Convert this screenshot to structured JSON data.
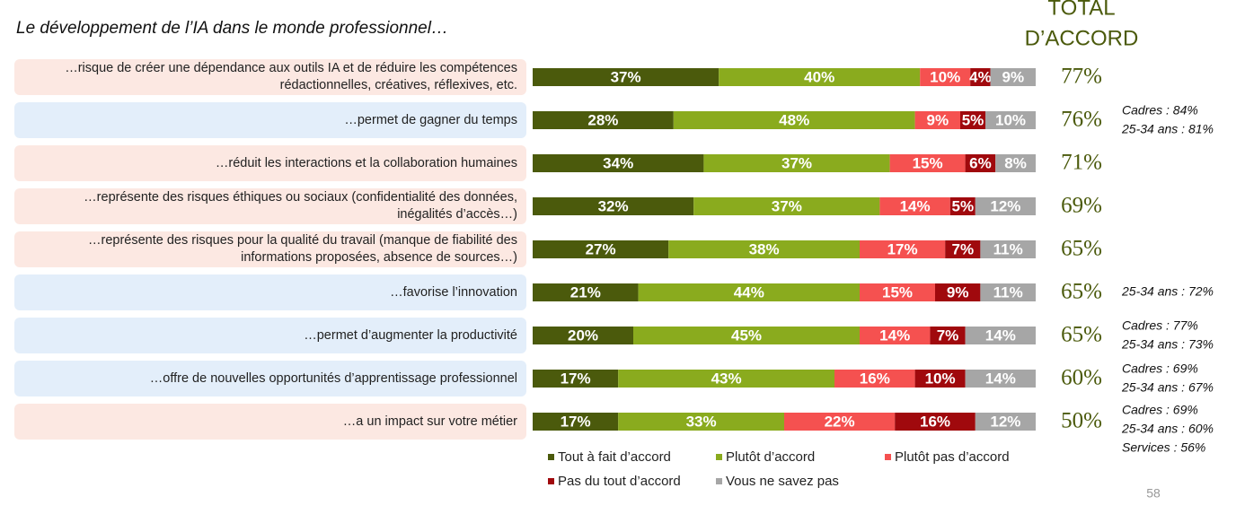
{
  "chart_data": {
    "type": "stacked_bar_horizontal",
    "title": "Le développement de l’IA dans le monde professionnel…",
    "total_title": [
      "TOTAL",
      "D’ACCORD"
    ],
    "page_number": "58",
    "categories": [
      "…risque de créer une dépendance aux outils IA et de réduire les compétences rédactionnelles, créatives, réflexives, etc.",
      "…permet de gagner du temps",
      "…réduit les interactions et la collaboration humaines",
      "…représente des risques éthiques ou sociaux (confidentialité des données, inégalités d’accès…)",
      "…représente des risques pour la qualité du travail (manque de fiabilité des informations proposées, absence de sources…)",
      "…favorise l’innovation",
      "…permet d’augmenter la productivité",
      "…offre de nouvelles opportunités d’apprentissage professionnel",
      "…a un impact sur votre métier"
    ],
    "category_colors": [
      "#fce8e2",
      "#e3eefa",
      "#fce8e2",
      "#fce8e2",
      "#fce8e2",
      "#e3eefa",
      "#e3eefa",
      "#e3eefa",
      "#fce8e2"
    ],
    "xlim": [
      0,
      100
    ],
    "series": [
      {
        "name": "Tout à fait d’accord",
        "color": "#4b5a0c",
        "values": [
          37,
          28,
          34,
          32,
          27,
          21,
          20,
          17,
          17
        ],
        "value_labels": [
          "37%",
          "28%",
          "34%",
          "32%",
          "27%",
          "21%",
          "20%",
          "17%",
          "17%"
        ]
      },
      {
        "name": "Plutôt d’accord",
        "color": "#8aab1e",
        "values": [
          40,
          48,
          37,
          37,
          38,
          44,
          45,
          43,
          33
        ],
        "value_labels": [
          "40%",
          "48%",
          "37%",
          "37%",
          "38%",
          "44%",
          "45%",
          "43%",
          "33%"
        ]
      },
      {
        "name": "Plutôt pas d’accord",
        "color": "#f55150",
        "values": [
          10,
          9,
          15,
          14,
          17,
          15,
          14,
          16,
          22
        ],
        "value_labels": [
          "10%",
          "9%",
          "15%",
          "14%",
          "17%",
          "15%",
          "14%",
          "16%",
          "22%"
        ]
      },
      {
        "name": "Pas du tout d’accord",
        "color": "#a0090d",
        "values": [
          4,
          5,
          6,
          5,
          7,
          9,
          7,
          10,
          16
        ],
        "value_labels": [
          "4%",
          "5%",
          "6%",
          "5%",
          "7%",
          "9%",
          "7%",
          "10%",
          "16%"
        ]
      },
      {
        "name": "Vous ne savez pas",
        "color": "#a6a6a6",
        "values": [
          9,
          10,
          8,
          12,
          11,
          11,
          14,
          14,
          12
        ],
        "value_labels": [
          "9%",
          "10%",
          "8%",
          "12%",
          "11%",
          "11%",
          "14%",
          "14%",
          "12%"
        ]
      }
    ],
    "totals": {
      "values": [
        77,
        76,
        71,
        69,
        65,
        65,
        65,
        60,
        50
      ],
      "value_labels": [
        "77%",
        "76%",
        "71%",
        "69%",
        "65%",
        "65%",
        "65%",
        "60%",
        "50%"
      ],
      "color": "#4b5a0c"
    },
    "notes": [
      null,
      [
        "Cadres : 84%",
        "25-34 ans : 81%"
      ],
      null,
      null,
      null,
      [
        "25-34 ans : 72%"
      ],
      [
        "Cadres : 77%",
        "25-34 ans : 73%"
      ],
      [
        "Cadres : 69%",
        "25-34 ans : 67%"
      ],
      [
        "Cadres : 69%",
        "25-34 ans : 60%",
        "Services : 56%"
      ]
    ]
  }
}
